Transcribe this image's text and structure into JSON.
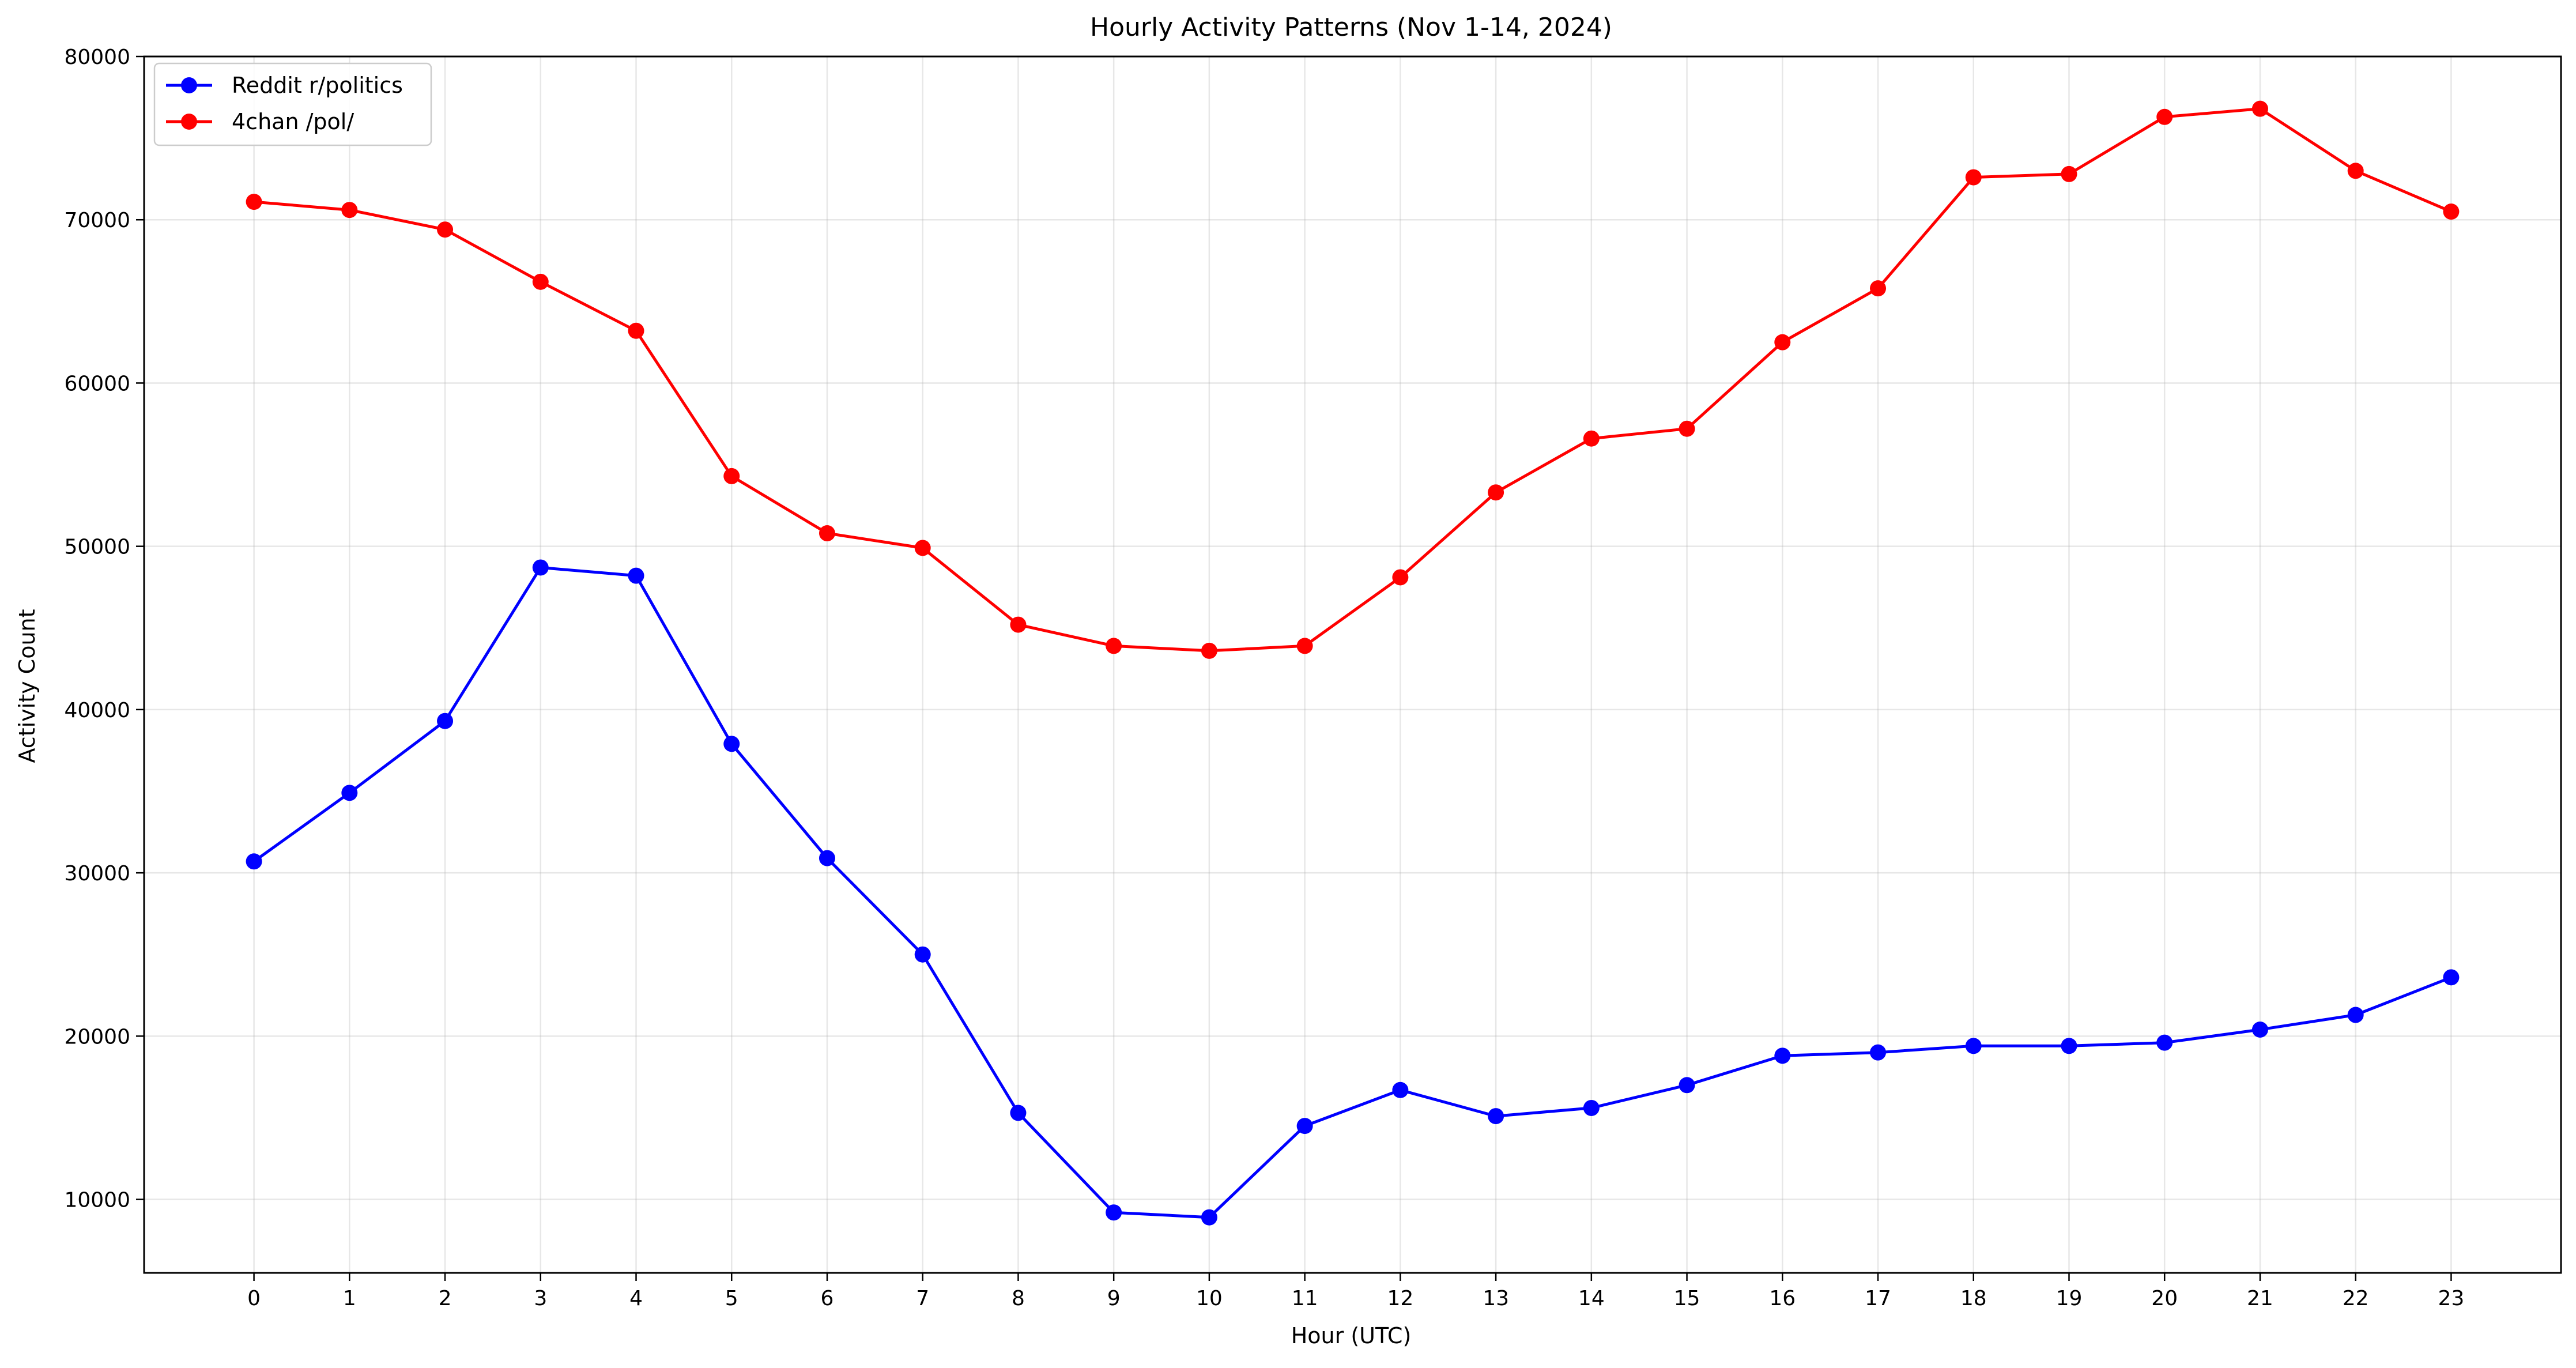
{
  "chart_data": {
    "type": "line",
    "title": "Hourly Activity Patterns (Nov 1-14, 2024)",
    "xlabel": "Hour (UTC)",
    "ylabel": "Activity Count",
    "x": [
      0,
      1,
      2,
      3,
      4,
      5,
      6,
      7,
      8,
      9,
      10,
      11,
      12,
      13,
      14,
      15,
      16,
      17,
      18,
      19,
      20,
      21,
      22,
      23
    ],
    "xlim": [
      -1.15,
      24.15
    ],
    "ylim": [
      5500,
      80000
    ],
    "yticks": [
      10000,
      20000,
      30000,
      40000,
      50000,
      60000,
      70000,
      80000
    ],
    "grid": true,
    "legend_position": "top-left",
    "series": [
      {
        "name": "Reddit r/politics",
        "color": "#0000ff",
        "marker": "circle",
        "values": [
          30700,
          34900,
          39300,
          48700,
          48200,
          37900,
          30900,
          25000,
          15300,
          9200,
          8900,
          14500,
          16700,
          15100,
          15600,
          17000,
          18800,
          19000,
          19400,
          19400,
          19600,
          20400,
          21300,
          23600
        ]
      },
      {
        "name": "4chan /pol/",
        "color": "#ff0000",
        "marker": "circle",
        "values": [
          71100,
          70600,
          69400,
          66200,
          63200,
          54300,
          50800,
          49900,
          45200,
          43900,
          43600,
          43900,
          48100,
          53300,
          56600,
          57200,
          62500,
          65800,
          72600,
          72800,
          76300,
          76800,
          73000,
          70500
        ]
      }
    ]
  }
}
